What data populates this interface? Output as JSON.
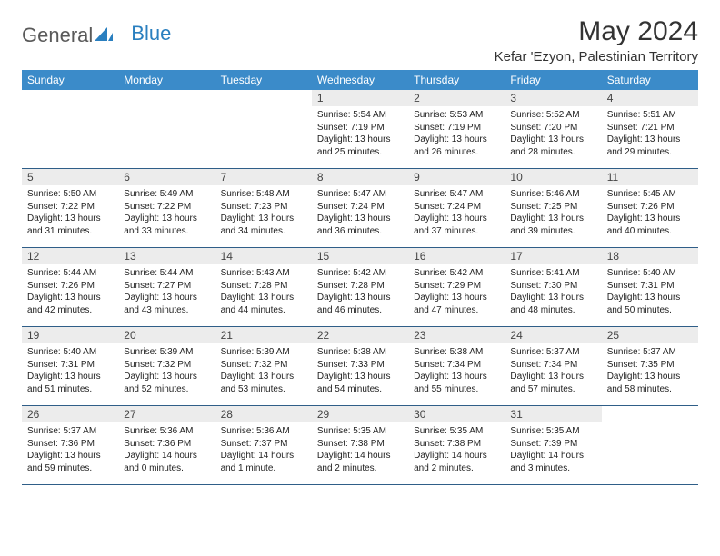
{
  "brand": {
    "word1": "General",
    "word2": "Blue"
  },
  "header": {
    "title": "May 2024",
    "location": "Kefar 'Ezyon, Palestinian Territory"
  },
  "colors": {
    "header_bg": "#3b8bc9",
    "header_text": "#ffffff",
    "daynum_bg": "#ececec",
    "row_border": "#2f5e88",
    "logo_gray": "#5a5a5a",
    "logo_blue": "#2a7fbf"
  },
  "weekdays": [
    "Sunday",
    "Monday",
    "Tuesday",
    "Wednesday",
    "Thursday",
    "Friday",
    "Saturday"
  ],
  "weeks": [
    [
      {
        "n": "",
        "lines": []
      },
      {
        "n": "",
        "lines": []
      },
      {
        "n": "",
        "lines": []
      },
      {
        "n": "1",
        "lines": [
          "Sunrise: 5:54 AM",
          "Sunset: 7:19 PM",
          "Daylight: 13 hours",
          "and 25 minutes."
        ]
      },
      {
        "n": "2",
        "lines": [
          "Sunrise: 5:53 AM",
          "Sunset: 7:19 PM",
          "Daylight: 13 hours",
          "and 26 minutes."
        ]
      },
      {
        "n": "3",
        "lines": [
          "Sunrise: 5:52 AM",
          "Sunset: 7:20 PM",
          "Daylight: 13 hours",
          "and 28 minutes."
        ]
      },
      {
        "n": "4",
        "lines": [
          "Sunrise: 5:51 AM",
          "Sunset: 7:21 PM",
          "Daylight: 13 hours",
          "and 29 minutes."
        ]
      }
    ],
    [
      {
        "n": "5",
        "lines": [
          "Sunrise: 5:50 AM",
          "Sunset: 7:22 PM",
          "Daylight: 13 hours",
          "and 31 minutes."
        ]
      },
      {
        "n": "6",
        "lines": [
          "Sunrise: 5:49 AM",
          "Sunset: 7:22 PM",
          "Daylight: 13 hours",
          "and 33 minutes."
        ]
      },
      {
        "n": "7",
        "lines": [
          "Sunrise: 5:48 AM",
          "Sunset: 7:23 PM",
          "Daylight: 13 hours",
          "and 34 minutes."
        ]
      },
      {
        "n": "8",
        "lines": [
          "Sunrise: 5:47 AM",
          "Sunset: 7:24 PM",
          "Daylight: 13 hours",
          "and 36 minutes."
        ]
      },
      {
        "n": "9",
        "lines": [
          "Sunrise: 5:47 AM",
          "Sunset: 7:24 PM",
          "Daylight: 13 hours",
          "and 37 minutes."
        ]
      },
      {
        "n": "10",
        "lines": [
          "Sunrise: 5:46 AM",
          "Sunset: 7:25 PM",
          "Daylight: 13 hours",
          "and 39 minutes."
        ]
      },
      {
        "n": "11",
        "lines": [
          "Sunrise: 5:45 AM",
          "Sunset: 7:26 PM",
          "Daylight: 13 hours",
          "and 40 minutes."
        ]
      }
    ],
    [
      {
        "n": "12",
        "lines": [
          "Sunrise: 5:44 AM",
          "Sunset: 7:26 PM",
          "Daylight: 13 hours",
          "and 42 minutes."
        ]
      },
      {
        "n": "13",
        "lines": [
          "Sunrise: 5:44 AM",
          "Sunset: 7:27 PM",
          "Daylight: 13 hours",
          "and 43 minutes."
        ]
      },
      {
        "n": "14",
        "lines": [
          "Sunrise: 5:43 AM",
          "Sunset: 7:28 PM",
          "Daylight: 13 hours",
          "and 44 minutes."
        ]
      },
      {
        "n": "15",
        "lines": [
          "Sunrise: 5:42 AM",
          "Sunset: 7:28 PM",
          "Daylight: 13 hours",
          "and 46 minutes."
        ]
      },
      {
        "n": "16",
        "lines": [
          "Sunrise: 5:42 AM",
          "Sunset: 7:29 PM",
          "Daylight: 13 hours",
          "and 47 minutes."
        ]
      },
      {
        "n": "17",
        "lines": [
          "Sunrise: 5:41 AM",
          "Sunset: 7:30 PM",
          "Daylight: 13 hours",
          "and 48 minutes."
        ]
      },
      {
        "n": "18",
        "lines": [
          "Sunrise: 5:40 AM",
          "Sunset: 7:31 PM",
          "Daylight: 13 hours",
          "and 50 minutes."
        ]
      }
    ],
    [
      {
        "n": "19",
        "lines": [
          "Sunrise: 5:40 AM",
          "Sunset: 7:31 PM",
          "Daylight: 13 hours",
          "and 51 minutes."
        ]
      },
      {
        "n": "20",
        "lines": [
          "Sunrise: 5:39 AM",
          "Sunset: 7:32 PM",
          "Daylight: 13 hours",
          "and 52 minutes."
        ]
      },
      {
        "n": "21",
        "lines": [
          "Sunrise: 5:39 AM",
          "Sunset: 7:32 PM",
          "Daylight: 13 hours",
          "and 53 minutes."
        ]
      },
      {
        "n": "22",
        "lines": [
          "Sunrise: 5:38 AM",
          "Sunset: 7:33 PM",
          "Daylight: 13 hours",
          "and 54 minutes."
        ]
      },
      {
        "n": "23",
        "lines": [
          "Sunrise: 5:38 AM",
          "Sunset: 7:34 PM",
          "Daylight: 13 hours",
          "and 55 minutes."
        ]
      },
      {
        "n": "24",
        "lines": [
          "Sunrise: 5:37 AM",
          "Sunset: 7:34 PM",
          "Daylight: 13 hours",
          "and 57 minutes."
        ]
      },
      {
        "n": "25",
        "lines": [
          "Sunrise: 5:37 AM",
          "Sunset: 7:35 PM",
          "Daylight: 13 hours",
          "and 58 minutes."
        ]
      }
    ],
    [
      {
        "n": "26",
        "lines": [
          "Sunrise: 5:37 AM",
          "Sunset: 7:36 PM",
          "Daylight: 13 hours",
          "and 59 minutes."
        ]
      },
      {
        "n": "27",
        "lines": [
          "Sunrise: 5:36 AM",
          "Sunset: 7:36 PM",
          "Daylight: 14 hours",
          "and 0 minutes."
        ]
      },
      {
        "n": "28",
        "lines": [
          "Sunrise: 5:36 AM",
          "Sunset: 7:37 PM",
          "Daylight: 14 hours",
          "and 1 minute."
        ]
      },
      {
        "n": "29",
        "lines": [
          "Sunrise: 5:35 AM",
          "Sunset: 7:38 PM",
          "Daylight: 14 hours",
          "and 2 minutes."
        ]
      },
      {
        "n": "30",
        "lines": [
          "Sunrise: 5:35 AM",
          "Sunset: 7:38 PM",
          "Daylight: 14 hours",
          "and 2 minutes."
        ]
      },
      {
        "n": "31",
        "lines": [
          "Sunrise: 5:35 AM",
          "Sunset: 7:39 PM",
          "Daylight: 14 hours",
          "and 3 minutes."
        ]
      },
      {
        "n": "",
        "lines": []
      }
    ]
  ]
}
